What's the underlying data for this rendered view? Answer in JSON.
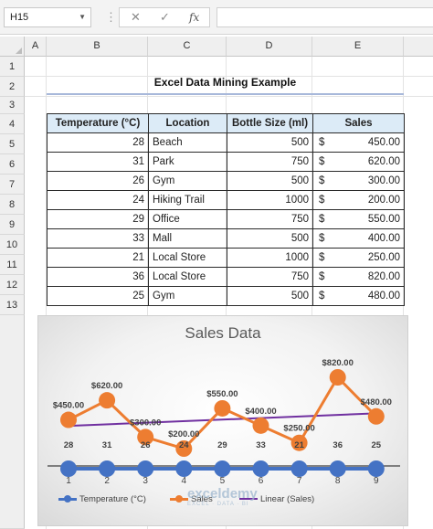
{
  "formula_bar": {
    "name_box": "H15",
    "cancel_icon": "✕",
    "enter_icon": "✓",
    "fx_label": "fx",
    "formula": ""
  },
  "columns": [
    "A",
    "B",
    "C",
    "D",
    "E"
  ],
  "rows": [
    "1",
    "2",
    "3",
    "4",
    "5",
    "6",
    "7",
    "8",
    "9",
    "10",
    "11",
    "12",
    "13"
  ],
  "sheet": {
    "title": "Excel Data Mining Example",
    "headers": [
      "Temperature (°C)",
      "Location",
      "Bottle Size (ml)",
      "Sales"
    ],
    "records": [
      {
        "temp": "28",
        "location": "Beach",
        "size": "500",
        "cur": "$",
        "sales": "450.00"
      },
      {
        "temp": "31",
        "location": "Park",
        "size": "750",
        "cur": "$",
        "sales": "620.00"
      },
      {
        "temp": "26",
        "location": "Gym",
        "size": "500",
        "cur": "$",
        "sales": "300.00"
      },
      {
        "temp": "24",
        "location": "Hiking Trail",
        "size": "1000",
        "cur": "$",
        "sales": "200.00"
      },
      {
        "temp": "29",
        "location": "Office",
        "size": "750",
        "cur": "$",
        "sales": "550.00"
      },
      {
        "temp": "33",
        "location": "Mall",
        "size": "500",
        "cur": "$",
        "sales": "400.00"
      },
      {
        "temp": "21",
        "location": "Local Store",
        "size": "1000",
        "cur": "$",
        "sales": "250.00"
      },
      {
        "temp": "36",
        "location": "Local Store",
        "size": "750",
        "cur": "$",
        "sales": "820.00"
      },
      {
        "temp": "25",
        "location": "Gym",
        "size": "500",
        "cur": "$",
        "sales": "480.00"
      }
    ]
  },
  "chart_data": {
    "type": "line",
    "title": "Sales Data",
    "categories": [
      1,
      2,
      3,
      4,
      5,
      6,
      7,
      8,
      9
    ],
    "series": [
      {
        "name": "Temperature (°C)",
        "values": [
          28,
          31,
          26,
          24,
          29,
          33,
          21,
          36,
          25
        ],
        "color": "#4472c4"
      },
      {
        "name": "Sales",
        "values": [
          450,
          620,
          300,
          200,
          550,
          400,
          250,
          820,
          480
        ],
        "color": "#ed7d31",
        "labels": [
          "$450.00",
          "$620.00",
          "$300.00",
          "$200.00",
          "$550.00",
          "$400.00",
          "$250.00",
          "$820.00",
          "$480.00"
        ]
      },
      {
        "name": "Linear (Sales)",
        "type": "trendline",
        "color": "#7030a0"
      }
    ],
    "grid": false,
    "legend": "bottom"
  },
  "watermark": {
    "brand": "exceldemy",
    "tagline": "EXCEL · DATA · BI"
  }
}
